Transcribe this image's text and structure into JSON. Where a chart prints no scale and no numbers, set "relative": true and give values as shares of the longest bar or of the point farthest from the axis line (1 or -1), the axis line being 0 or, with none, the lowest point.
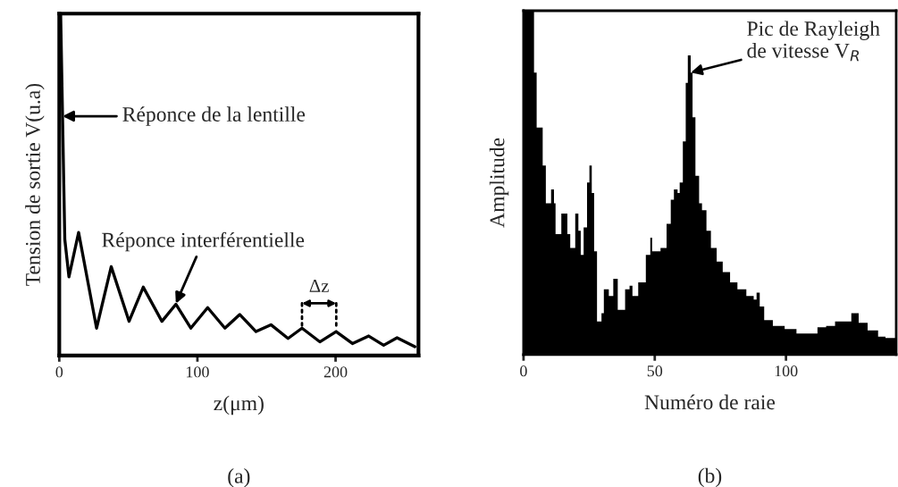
{
  "chart_data": [
    {
      "type": "line",
      "relative": true,
      "xlabel": "z(μm)",
      "ylabel": "Tension de sortie V(u.a)",
      "xlim": [
        0,
        260
      ],
      "xticks": [
        0,
        100,
        200
      ],
      "tick_labels": "x",
      "color": "#000000",
      "grid": false,
      "legend": false,
      "x": [
        1,
        4,
        7,
        14,
        27,
        37.6,
        50.5,
        60.8,
        74.3,
        84.4,
        95.2,
        107.4,
        119.9,
        130.6,
        142.4,
        153.2,
        165.6,
        175.7,
        188.6,
        200.4,
        212.2,
        224,
        234.8,
        244.5,
        257.4
      ],
      "values": [
        1.0,
        0.34,
        0.23,
        0.36,
        0.08,
        0.26,
        0.1,
        0.2,
        0.1,
        0.15,
        0.08,
        0.14,
        0.08,
        0.12,
        0.07,
        0.09,
        0.05,
        0.08,
        0.04,
        0.07,
        0.035,
        0.057,
        0.03,
        0.052,
        0.026
      ],
      "annotations": [
        {
          "text": "Réponce de la lentille",
          "x": 2.4,
          "y": 0.7
        },
        {
          "text": "Réponce interférentielle",
          "x": 84.4,
          "y": 0.152
        },
        {
          "text": "Δz",
          "x": 175.7,
          "y": 0.08
        },
        "(a)"
      ]
    },
    {
      "type": "area",
      "relative": true,
      "xlabel": "Numéro de raie",
      "ylabel": "Amplitude",
      "xlim": [
        0,
        142
      ],
      "xticks": [
        0,
        50,
        100
      ],
      "tick_labels": "x",
      "color": "#000000",
      "grid": false,
      "legend": false,
      "x": [
        0,
        3.7,
        4,
        5,
        7.3,
        8.5,
        10.5,
        11.6,
        12.2,
        14.4,
        16.7,
        17.8,
        19.7,
        20.9,
        21.8,
        22.9,
        24.2,
        25.1,
        26,
        26.9,
        28,
        29.7,
        30.6,
        32.5,
        34.2,
        35.9,
        38.7,
        40.4,
        41.5,
        43.7,
        45.4,
        46.6,
        48.3,
        49,
        51.1,
        52.2,
        54.5,
        56.1,
        57.3,
        58.7,
        59.5,
        60.7,
        61.8,
        62.6,
        63.7,
        64.4,
        65.5,
        66.9,
        68,
        69.7,
        71.4,
        73.6,
        75.9,
        78.7,
        81.5,
        84.9,
        87.7,
        88.8,
        90,
        91.7,
        95,
        99.5,
        104,
        108.6,
        112,
        115.3,
        118.7,
        122.7,
        124.9,
        127.7,
        131.1,
        135.1,
        137.9,
        141.8
      ],
      "values": [
        1.0,
        1.0,
        0.82,
        0.66,
        0.55,
        0.44,
        0.48,
        0.44,
        0.35,
        0.41,
        0.35,
        0.31,
        0.41,
        0.36,
        0.29,
        0.37,
        0.5,
        0.55,
        0.47,
        0.3,
        0.096,
        0.12,
        0.19,
        0.17,
        0.22,
        0.13,
        0.19,
        0.2,
        0.17,
        0.21,
        0.21,
        0.29,
        0.34,
        0.3,
        0.3,
        0.31,
        0.38,
        0.45,
        0.48,
        0.47,
        0.5,
        0.62,
        0.79,
        0.87,
        0.82,
        0.69,
        0.52,
        0.44,
        0.42,
        0.36,
        0.31,
        0.27,
        0.24,
        0.21,
        0.19,
        0.17,
        0.16,
        0.18,
        0.14,
        0.1,
        0.083,
        0.074,
        0.061,
        0.061,
        0.079,
        0.083,
        0.096,
        0.096,
        0.12,
        0.092,
        0.07,
        0.052,
        0.048,
        0.044
      ],
      "annotations": [
        {
          "text": "Pic de Rayleigh\nde vitesse V$_{R}$",
          "x": 63.7,
          "y": 0.82
        },
        "(b)"
      ]
    }
  ]
}
